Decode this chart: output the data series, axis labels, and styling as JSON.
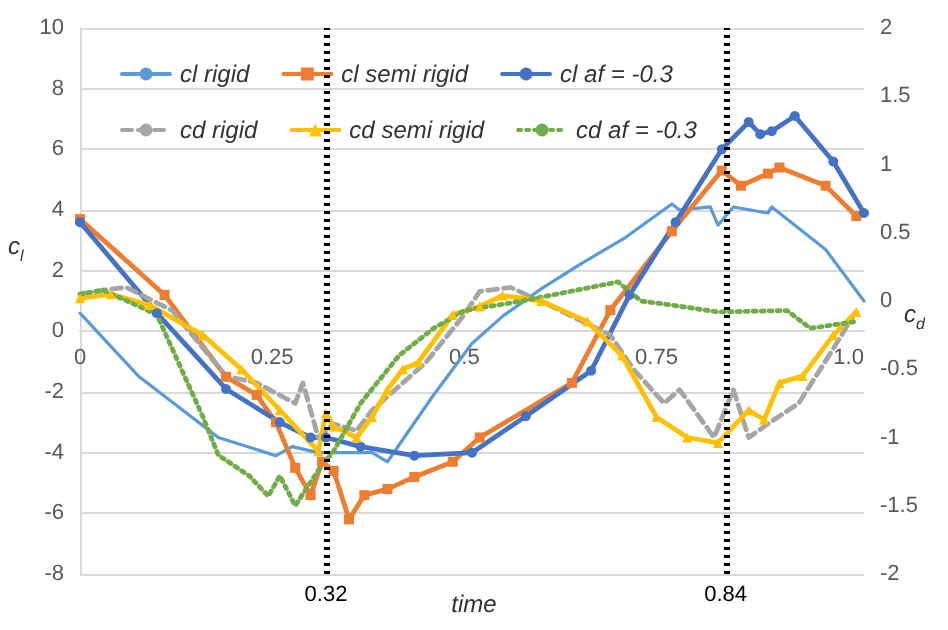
{
  "chart_data": {
    "type": "line",
    "xlabel": "time",
    "ylabel": "c$_{l}$",
    "y2label": "c$_{d}$",
    "xlim": [
      0,
      1.02
    ],
    "xticks": [
      0,
      0.25,
      0.5,
      0.75,
      {
        "value": 1,
        "label": "1.0"
      }
    ],
    "ylim": [
      -8,
      10
    ],
    "yticks": [
      -8,
      -6,
      -4,
      -2,
      0,
      2,
      4,
      6,
      8,
      10
    ],
    "y2lim": [
      -2,
      2
    ],
    "y2ticks": [
      -2,
      -1.5,
      -1,
      -0.5,
      0,
      0.5,
      1,
      1.5,
      2
    ],
    "grid": "y",
    "legend": "top",
    "series": [
      {
        "name": "cl rigid",
        "color": "#5b9bd5",
        "marker": "none",
        "line_style": "solid",
        "x": [
          0,
          0.077,
          0.18,
          0.255,
          0.276,
          0.31,
          0.38,
          0.4,
          0.46,
          0.51,
          0.55,
          0.6,
          0.65,
          0.71,
          0.77,
          0.78,
          0.82,
          0.83,
          0.85,
          0.895,
          0.9,
          0.97,
          1.02
        ],
        "values": [
          0.6,
          -1.5,
          -3.5,
          -4.1,
          -3.8,
          -4.0,
          -4.0,
          -4.3,
          -2.1,
          -0.4,
          0.5,
          1.4,
          2.2,
          3.1,
          4.2,
          4.0,
          4.1,
          3.5,
          4.1,
          3.9,
          4.1,
          2.7,
          1.0
        ]
      },
      {
        "name": "cl semi rigid",
        "color": "#ed7d31",
        "marker": "square",
        "line_style": "solid",
        "x": [
          0,
          0.11,
          0.19,
          0.23,
          0.255,
          0.28,
          0.3,
          0.315,
          0.33,
          0.35,
          0.37,
          0.4,
          0.435,
          0.485,
          0.52,
          0.64,
          0.69,
          0.77,
          0.835,
          0.86,
          0.895,
          0.91,
          0.97,
          1.01
        ],
        "values": [
          3.7,
          1.2,
          -1.5,
          -2.1,
          -3.0,
          -4.5,
          -5.4,
          -4.3,
          -4.6,
          -6.2,
          -5.4,
          -5.2,
          -4.8,
          -4.3,
          -3.5,
          -1.7,
          0.7,
          3.3,
          5.3,
          4.8,
          5.2,
          5.4,
          4.8,
          3.8
        ]
      },
      {
        "name": "cl af = -0.3",
        "color": "#4472c4",
        "marker": "circle",
        "line_style": "solid",
        "x": [
          0,
          0.1,
          0.19,
          0.26,
          0.3,
          0.32,
          0.365,
          0.435,
          0.51,
          0.58,
          0.665,
          0.715,
          0.775,
          0.835,
          0.87,
          0.885,
          0.9,
          0.93,
          0.98,
          1.02
        ],
        "values": [
          3.6,
          0.6,
          -1.9,
          -3.0,
          -3.5,
          -3.5,
          -3.8,
          -4.1,
          -4.0,
          -2.8,
          -1.3,
          1.2,
          3.6,
          6.0,
          6.9,
          6.5,
          6.6,
          7.1,
          5.6,
          3.9
        ]
      },
      {
        "name": "cd rigid",
        "color": "#a5a5a5",
        "marker": "none",
        "line_style": "dashed",
        "axis": "y2",
        "x": [
          0,
          0.03,
          0.06,
          0.12,
          0.19,
          0.23,
          0.28,
          0.29,
          0.31,
          0.33,
          0.36,
          0.38,
          0.45,
          0.5,
          0.52,
          0.56,
          0.61,
          0.69,
          0.72,
          0.76,
          0.78,
          0.825,
          0.85,
          0.87,
          0.895,
          0.935,
          0.98,
          1.01
        ],
        "values": [
          0.05,
          0.08,
          0.1,
          -0.07,
          -0.55,
          -0.6,
          -0.75,
          -0.6,
          -1.0,
          -0.9,
          -0.95,
          -0.8,
          -0.45,
          -0.1,
          0.07,
          0.1,
          -0.03,
          -0.25,
          -0.5,
          -0.75,
          -0.65,
          -1.0,
          -0.65,
          -1.0,
          -0.9,
          -0.75,
          -0.35,
          -0.07
        ]
      },
      {
        "name": "cd semi rigid",
        "color": "#ffc000",
        "marker": "triangle",
        "line_style": "solid",
        "axis": "y2",
        "x": [
          0,
          0.04,
          0.09,
          0.16,
          0.21,
          0.26,
          0.31,
          0.32,
          0.33,
          0.36,
          0.38,
          0.4,
          0.42,
          0.44,
          0.485,
          0.52,
          0.55,
          0.6,
          0.66,
          0.705,
          0.75,
          0.79,
          0.83,
          0.87,
          0.89,
          0.91,
          0.94,
          0.98,
          1.01
        ],
        "values": [
          0.02,
          0.05,
          -0.03,
          -0.25,
          -0.5,
          -0.8,
          -1.1,
          -0.82,
          -0.92,
          -1.0,
          -0.85,
          -0.65,
          -0.5,
          -0.45,
          -0.1,
          -0.04,
          0.04,
          0.0,
          -0.15,
          -0.4,
          -0.85,
          -1.0,
          -1.04,
          -0.8,
          -0.87,
          -0.6,
          -0.55,
          -0.25,
          -0.08
        ]
      },
      {
        "name": "cd af = -0.3",
        "color": "#70ad47",
        "marker": "none",
        "line_style": "dotted",
        "axis": "y2",
        "x": [
          0,
          0.03,
          0.1,
          0.16,
          0.18,
          0.22,
          0.245,
          0.26,
          0.28,
          0.31,
          0.33,
          0.365,
          0.415,
          0.46,
          0.5,
          0.575,
          0.7,
          0.73,
          0.77,
          0.83,
          0.92,
          0.95,
          1.01
        ],
        "values": [
          0.05,
          0.08,
          -0.1,
          -0.85,
          -1.13,
          -1.28,
          -1.43,
          -1.28,
          -1.5,
          -1.24,
          -1.1,
          -0.75,
          -0.4,
          -0.2,
          -0.07,
          0.0,
          0.14,
          0.0,
          -0.03,
          -0.08,
          -0.07,
          -0.2,
          -0.15
        ]
      }
    ],
    "ref_lines": [
      {
        "axis": "x",
        "value": 0.32,
        "label": "0.32",
        "color": "#000000",
        "line_style": "dotted"
      },
      {
        "axis": "x",
        "value": 0.84,
        "label": "0.84",
        "color": "#000000",
        "line_style": "dotted"
      }
    ]
  }
}
